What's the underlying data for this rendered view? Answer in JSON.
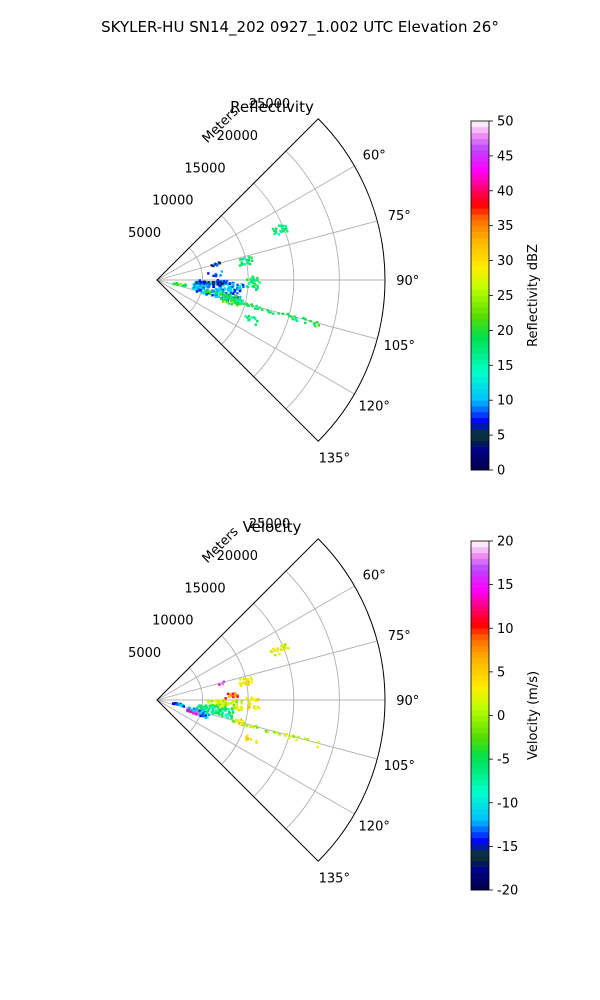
{
  "figure": {
    "suptitle": "SKYLER-HU  SN14_202  0927_1.002 UTC Elevation 26°"
  },
  "chart_data": [
    {
      "type": "polar-sector",
      "title": "Reflectivity",
      "radial_label": "Meters",
      "radial_ticks": [
        "5000",
        "10000",
        "15000",
        "20000",
        "25000"
      ],
      "radial_tick_values": [
        5000,
        10000,
        15000,
        20000,
        25000
      ],
      "rmax": 25000,
      "angle_ticks": [
        "60°",
        "75°",
        "90°",
        "105°",
        "120°",
        "135°"
      ],
      "angle_tick_values": [
        60,
        75,
        90,
        105,
        120,
        135
      ],
      "theta_range": [
        45,
        135
      ],
      "colorbar": {
        "label": "Reflectivity dBZ",
        "min": 0,
        "max": 50,
        "ticks": [
          "0",
          "5",
          "10",
          "15",
          "20",
          "25",
          "30",
          "35",
          "40",
          "45",
          "50"
        ]
      },
      "grid": true,
      "echo_regions": [
        {
          "r": [
            4000,
            9500
          ],
          "theta": [
            92,
            106
          ],
          "value": 10,
          "density": 0.55
        },
        {
          "r": [
            4200,
            7500
          ],
          "theta": [
            90,
            95
          ],
          "value": 6,
          "density": 0.35
        },
        {
          "r": [
            7000,
            9500
          ],
          "theta": [
            101,
            108
          ],
          "value": 20,
          "density": 0.35
        },
        {
          "r": [
            1800,
            3200
          ],
          "theta": [
            99,
            104
          ],
          "value": 20,
          "density": 0.5
        },
        {
          "r": [
            5500,
            7200
          ],
          "theta": [
            101,
            104
          ],
          "value": 19,
          "density": 0.35
        },
        {
          "r": [
            5500,
            8000
          ],
          "theta": [
            82,
            87
          ],
          "value": 9,
          "density": 0.25
        },
        {
          "r": [
            6200,
            7000
          ],
          "theta": [
            74,
            76
          ],
          "value": 7,
          "density": 0.5
        },
        {
          "r": [
            8500,
            18500
          ],
          "theta": [
            104.5,
            105.8
          ],
          "value": 19,
          "density": 0.45
        },
        {
          "r": [
            9800,
            11200
          ],
          "theta": [
            88,
            96
          ],
          "value": 18,
          "density": 0.45
        },
        {
          "r": [
            13500,
            15500
          ],
          "theta": [
            66,
            69
          ],
          "value": 17,
          "density": 0.6
        },
        {
          "r": [
            10500,
            12000
          ],
          "theta": [
            111,
            114
          ],
          "value": 17,
          "density": 0.45
        },
        {
          "r": [
            9200,
            10500
          ],
          "theta": [
            76,
            80
          ],
          "value": 17,
          "density": 0.5
        },
        {
          "r": [
            8800,
            9800
          ],
          "theta": [
            103,
            106
          ],
          "value": 17,
          "density": 0.5
        }
      ]
    },
    {
      "type": "polar-sector",
      "title": "Velocity",
      "radial_label": "Meters",
      "radial_ticks": [
        "5000",
        "10000",
        "15000",
        "20000",
        "25000"
      ],
      "radial_tick_values": [
        5000,
        10000,
        15000,
        20000,
        25000
      ],
      "rmax": 25000,
      "angle_ticks": [
        "60°",
        "75°",
        "90°",
        "105°",
        "120°",
        "135°"
      ],
      "angle_tick_values": [
        60,
        75,
        90,
        105,
        120,
        135
      ],
      "theta_range": [
        45,
        135
      ],
      "colorbar": {
        "label": "Velocity (m/s)",
        "min": -20,
        "max": 20,
        "ticks": [
          "-20",
          "-15",
          "-10",
          "-5",
          "0",
          "5",
          "10",
          "15",
          "20"
        ]
      },
      "grid": true,
      "echo_regions": [
        {
          "r": [
            5500,
            9500
          ],
          "theta": [
            90,
            97
          ],
          "value": 1,
          "density": 0.55
        },
        {
          "r": [
            4500,
            8500
          ],
          "theta": [
            96,
            104
          ],
          "value": -7,
          "density": 0.5
        },
        {
          "r": [
            3500,
            6000
          ],
          "theta": [
            103,
            110
          ],
          "value": -12,
          "density": 0.55
        },
        {
          "r": [
            3500,
            5000
          ],
          "theta": [
            106,
            110
          ],
          "value": 15,
          "density": 0.35
        },
        {
          "r": [
            1800,
            3000
          ],
          "theta": [
            99,
            104
          ],
          "value": -12,
          "density": 0.5
        },
        {
          "r": [
            7500,
            9000
          ],
          "theta": [
            85,
            88
          ],
          "value": 9,
          "density": 0.45
        },
        {
          "r": [
            7000,
            8000
          ],
          "theta": [
            74,
            76
          ],
          "value": 15,
          "density": 0.5
        },
        {
          "r": [
            8500,
            18500
          ],
          "theta": [
            104.5,
            105.8
          ],
          "value": 1,
          "density": 0.45
        },
        {
          "r": [
            9800,
            11200
          ],
          "theta": [
            88,
            96
          ],
          "value": 4,
          "density": 0.45
        },
        {
          "r": [
            13500,
            15500
          ],
          "theta": [
            66,
            69
          ],
          "value": 2,
          "density": 0.6
        },
        {
          "r": [
            10500,
            12000
          ],
          "theta": [
            111,
            114
          ],
          "value": 5,
          "density": 0.45
        },
        {
          "r": [
            9200,
            10500
          ],
          "theta": [
            76,
            80
          ],
          "value": 3,
          "density": 0.5
        },
        {
          "r": [
            8800,
            9800
          ],
          "theta": [
            103,
            106
          ],
          "value": 4,
          "density": 0.5
        }
      ]
    }
  ]
}
